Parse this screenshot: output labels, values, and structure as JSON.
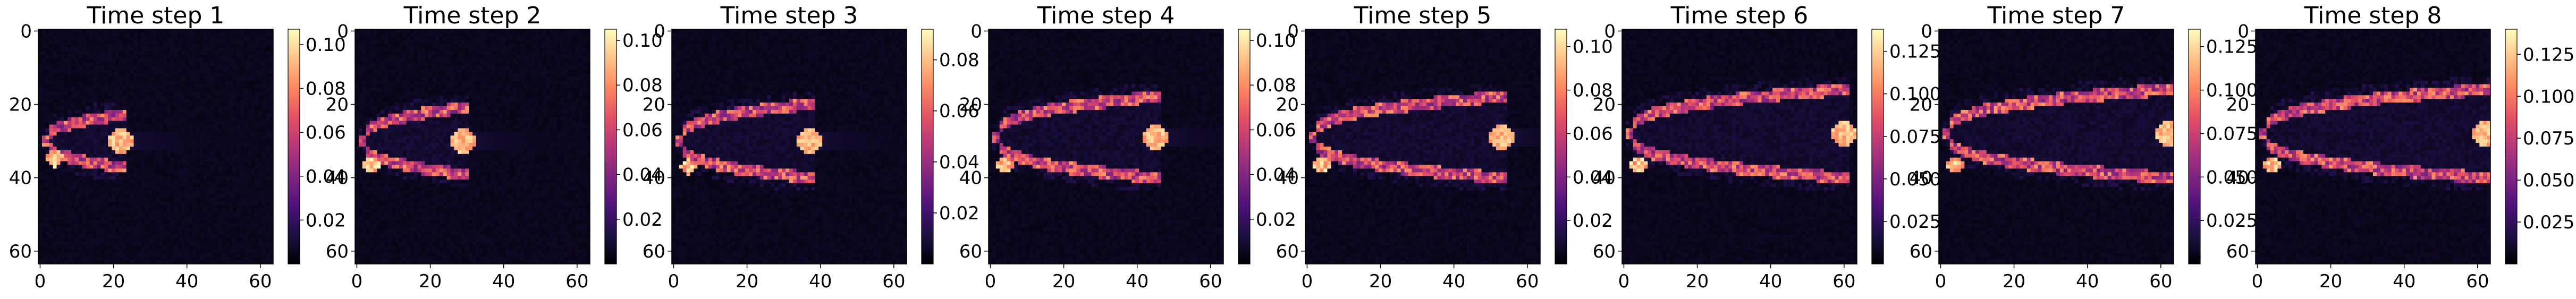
{
  "chart_data": [
    {
      "type": "heatmap",
      "title": "Time step 1",
      "x_ticks": [
        0,
        20,
        40,
        60
      ],
      "y_ticks": [
        0,
        20,
        40,
        60
      ],
      "xlim": [
        0,
        63
      ],
      "ylim": [
        63,
        0
      ],
      "colormap": "magma",
      "colorbar": {
        "ticks": [
          "0.02",
          "0.04",
          "0.06",
          "0.08",
          "0.10"
        ],
        "range": [
          0,
          0.107
        ]
      },
      "shape": {
        "head_x": 22,
        "center_y": 30,
        "half_width": 7,
        "tail_x": 2,
        "peak": 0.107
      }
    },
    {
      "type": "heatmap",
      "title": "Time step 2",
      "x_ticks": [
        0,
        20,
        40,
        60
      ],
      "y_ticks": [
        0,
        20,
        40,
        60
      ],
      "xlim": [
        0,
        63
      ],
      "ylim": [
        63,
        0
      ],
      "colormap": "magma",
      "colorbar": {
        "ticks": [
          "0.02",
          "0.04",
          "0.06",
          "0.08",
          "0.10"
        ],
        "range": [
          0,
          0.105
        ]
      },
      "shape": {
        "head_x": 29,
        "center_y": 30,
        "half_width": 9,
        "tail_x": 2,
        "peak": 0.105
      }
    },
    {
      "type": "heatmap",
      "title": "Time step 3",
      "x_ticks": [
        0,
        20,
        40,
        60
      ],
      "y_ticks": [
        0,
        20,
        40,
        60
      ],
      "xlim": [
        0,
        63
      ],
      "ylim": [
        63,
        0
      ],
      "colormap": "magma",
      "colorbar": {
        "ticks": [
          "0.02",
          "0.04",
          "0.06",
          "0.08"
        ],
        "range": [
          0,
          0.092
        ]
      },
      "shape": {
        "head_x": 37,
        "center_y": 30,
        "half_width": 10,
        "tail_x": 2,
        "peak": 0.092
      }
    },
    {
      "type": "heatmap",
      "title": "Time step 4",
      "x_ticks": [
        0,
        20,
        40,
        60
      ],
      "y_ticks": [
        0,
        20,
        40,
        60
      ],
      "xlim": [
        0,
        63
      ],
      "ylim": [
        63,
        0
      ],
      "colormap": "magma",
      "colorbar": {
        "ticks": [
          "0.02",
          "0.04",
          "0.06",
          "0.08",
          "0.10"
        ],
        "range": [
          0,
          0.105
        ]
      },
      "shape": {
        "head_x": 45,
        "center_y": 29,
        "half_width": 11,
        "tail_x": 2,
        "peak": 0.105
      }
    },
    {
      "type": "heatmap",
      "title": "Time step 5",
      "x_ticks": [
        0,
        20,
        40,
        60
      ],
      "y_ticks": [
        0,
        20,
        40,
        60
      ],
      "xlim": [
        0,
        63
      ],
      "ylim": [
        63,
        0
      ],
      "colormap": "magma",
      "colorbar": {
        "ticks": [
          "0.02",
          "0.04",
          "0.06",
          "0.08",
          "0.10"
        ],
        "range": [
          0,
          0.108
        ]
      },
      "shape": {
        "head_x": 53,
        "center_y": 29,
        "half_width": 11,
        "tail_x": 2,
        "peak": 0.108
      }
    },
    {
      "type": "heatmap",
      "title": "Time step 6",
      "x_ticks": [
        0,
        20,
        40,
        60
      ],
      "y_ticks": [
        0,
        20,
        40,
        60
      ],
      "xlim": [
        0,
        63
      ],
      "ylim": [
        63,
        0
      ],
      "colormap": "magma",
      "colorbar": {
        "ticks": [
          "0.025",
          "0.050",
          "0.075",
          "0.100",
          "0.125"
        ],
        "range": [
          0,
          0.138
        ]
      },
      "shape": {
        "head_x": 60,
        "center_y": 28,
        "half_width": 12,
        "tail_x": 2,
        "peak": 0.138
      }
    },
    {
      "type": "heatmap",
      "title": "Time step 7",
      "x_ticks": [
        0,
        20,
        40,
        60
      ],
      "y_ticks": [
        0,
        20,
        40,
        60
      ],
      "xlim": [
        0,
        63
      ],
      "ylim": [
        63,
        0
      ],
      "colormap": "magma",
      "colorbar": {
        "ticks": [
          "0.025",
          "0.050",
          "0.075",
          "0.100",
          "0.125"
        ],
        "range": [
          0,
          0.135
        ]
      },
      "shape": {
        "head_x": 62,
        "center_y": 28,
        "half_width": 12,
        "tail_x": 2,
        "peak": 0.135
      }
    },
    {
      "type": "heatmap",
      "title": "Time step 8",
      "x_ticks": [
        0,
        20,
        40,
        60
      ],
      "y_ticks": [
        0,
        20,
        40,
        60
      ],
      "xlim": [
        0,
        63
      ],
      "ylim": [
        63,
        0
      ],
      "colormap": "magma",
      "colorbar": {
        "ticks": [
          "0.025",
          "0.050",
          "0.075",
          "0.100",
          "0.125"
        ],
        "range": [
          0,
          0.14
        ]
      },
      "shape": {
        "head_x": 62,
        "center_y": 28,
        "half_width": 12,
        "tail_x": 2,
        "peak": 0.14
      }
    }
  ]
}
